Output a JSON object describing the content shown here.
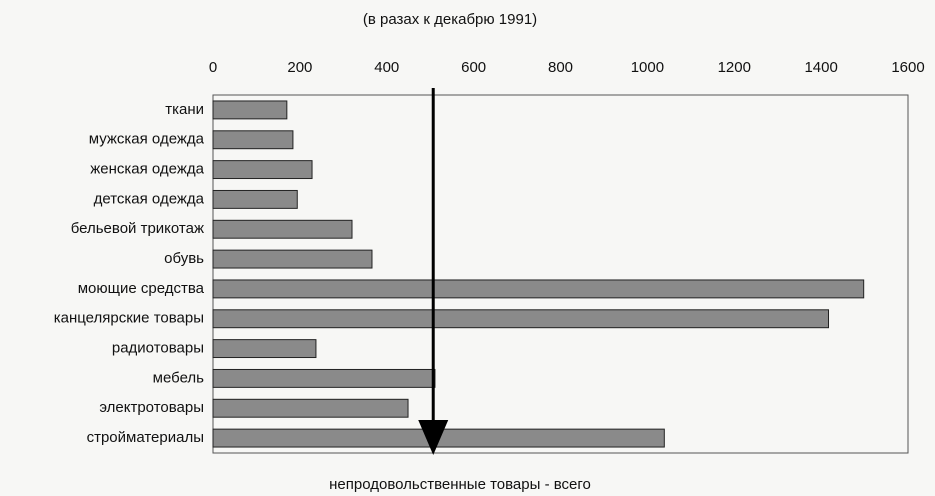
{
  "chart_data": {
    "type": "bar",
    "orientation": "horizontal",
    "subtitle": "(в разах к декабрю 1991)",
    "categories": [
      "ткани",
      "мужская одежда",
      "женская одежда",
      "детская одежда",
      "бельевой трикотаж",
      "обувь",
      "моющие средства",
      "канцелярские товары",
      "радиотовары",
      "мебель",
      "электротовары",
      "стройматериалы"
    ],
    "values": [
      170,
      184,
      228,
      194,
      320,
      366,
      1498,
      1417,
      237,
      511,
      449,
      1039
    ],
    "color": "#8a8a8a",
    "xlim": [
      0,
      1600
    ],
    "xticks": [
      0,
      200,
      400,
      600,
      800,
      1000,
      1200,
      1400,
      1600
    ],
    "grid": false,
    "total": {
      "label": "непродовольственные товары - всего",
      "value": 507
    }
  }
}
